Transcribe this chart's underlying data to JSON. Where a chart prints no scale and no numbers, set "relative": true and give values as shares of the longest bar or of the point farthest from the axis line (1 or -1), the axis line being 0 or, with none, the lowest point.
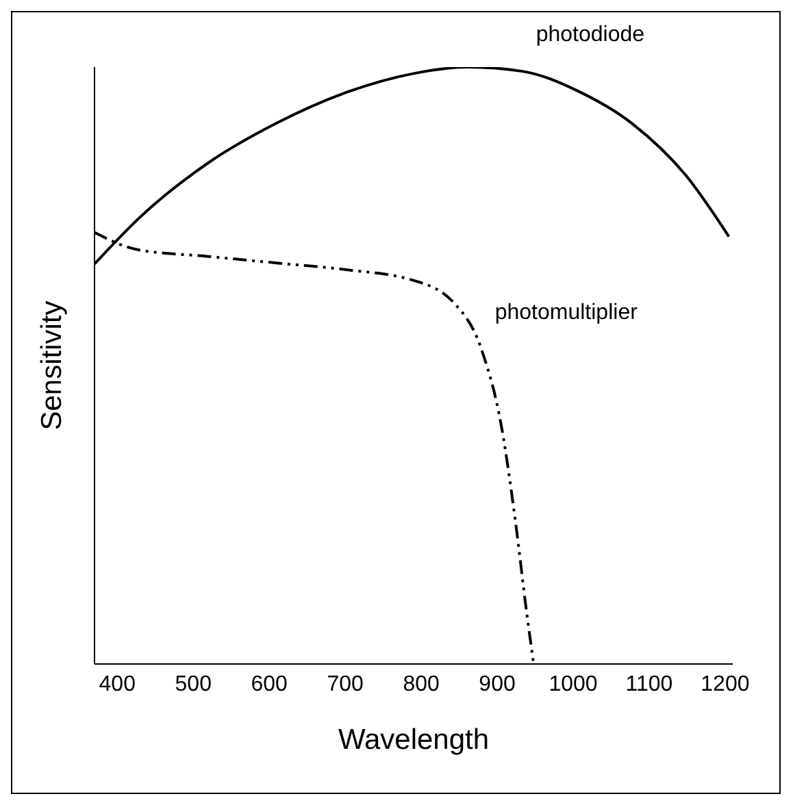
{
  "chart_data": {
    "type": "line",
    "relative": true,
    "xlabel": "Wavelength",
    "ylabel": "Sensitivity",
    "xlim": [
      370,
      1210
    ],
    "xticks": [
      400,
      500,
      600,
      700,
      800,
      900,
      1000,
      1100,
      1200
    ],
    "marker": "none",
    "series": [
      {
        "name": "photodiode",
        "color": "#000000",
        "line_style": "solid",
        "x": [
          370,
          427,
          518,
          608,
          698,
          789,
          861,
          933,
          1006,
          1078,
          1150,
          1205
        ],
        "values": [
          0.67,
          0.745,
          0.838,
          0.905,
          0.956,
          0.989,
          1.0,
          0.993,
          0.96,
          0.905,
          0.816,
          0.716
        ]
      },
      {
        "name": "photomultiplier",
        "color": "#000000",
        "line_style": "dashed",
        "x": [
          370,
          427,
          518,
          608,
          698,
          789,
          843,
          879,
          906,
          924,
          939,
          948
        ],
        "values": [
          0.723,
          0.694,
          0.683,
          0.672,
          0.661,
          0.643,
          0.605,
          0.528,
          0.395,
          0.239,
          0.084,
          0
        ]
      }
    ]
  }
}
